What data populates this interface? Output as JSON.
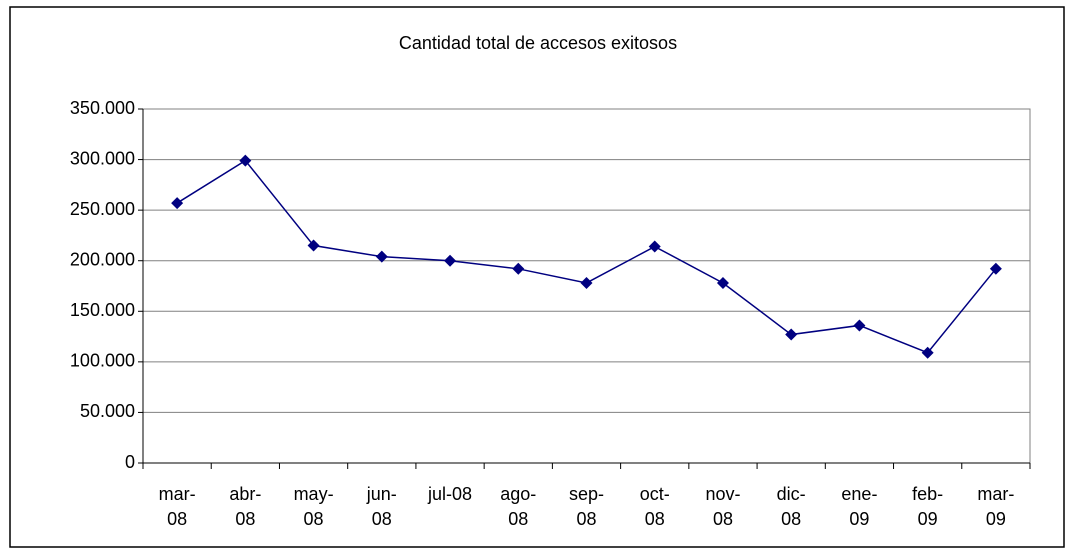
{
  "chart_data": {
    "type": "line",
    "title": "Cantidad total de accesos exitosos",
    "categories": [
      "mar-08",
      "abr-08",
      "may-08",
      "jun-08",
      "jul-08",
      "ago-08",
      "sep-08",
      "oct-08",
      "nov-08",
      "dic-08",
      "ene-09",
      "feb-09",
      "mar-09"
    ],
    "series": [
      {
        "name": "Cantidad total de accesos exitosos",
        "color": "#000080",
        "values": [
          257000,
          299000,
          215000,
          204000,
          200000,
          192000,
          178000,
          214000,
          178000,
          127000,
          136000,
          109000,
          192000
        ]
      }
    ],
    "ylim": [
      0,
      350000
    ],
    "yticks": [
      0,
      {
        "value": 50000,
        "label": "50.000"
      },
      {
        "value": 100000,
        "label": "100.000"
      },
      {
        "value": 150000,
        "label": "150.000"
      },
      {
        "value": 200000,
        "label": "200.000"
      },
      {
        "value": 250000,
        "label": "250.000"
      },
      {
        "value": 300000,
        "label": "300.000"
      },
      {
        "value": 350000,
        "label": "350.000"
      }
    ],
    "grid": true
  }
}
